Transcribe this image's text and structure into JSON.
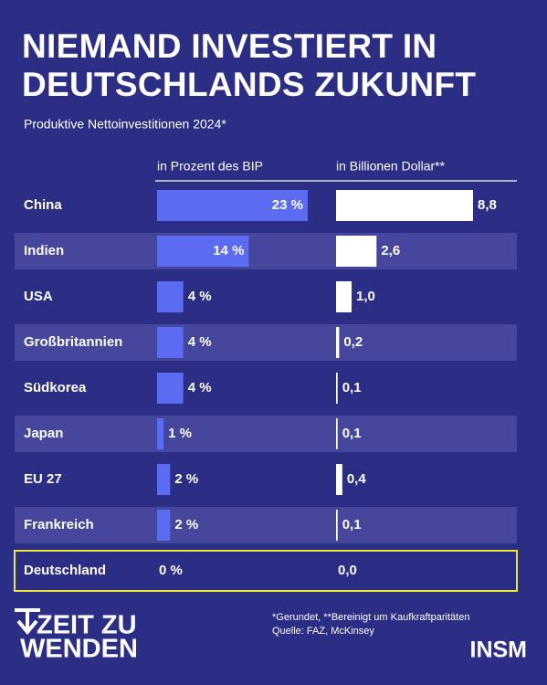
{
  "chart_data": {
    "type": "bar",
    "title": "NIEMAND INVESTIERT IN DEUTSCHLANDS ZUKUNFT",
    "subtitle": "Produktive Nettoinvestitionen 2024*",
    "categories": [
      "China",
      "Indien",
      "USA",
      "Großbritannien",
      "Südkorea",
      "Japan",
      "EU 27",
      "Frankreich",
      "Deutschland"
    ],
    "series": [
      {
        "name": "in Prozent des BIP",
        "color": "#5b6cf2",
        "values": [
          23,
          14,
          4,
          4,
          4,
          1,
          2,
          2,
          0
        ],
        "value_labels": [
          "23 %",
          "14 %",
          "4 %",
          "4 %",
          "4 %",
          "1 %",
          "2 %",
          "2 %",
          "0 %"
        ]
      },
      {
        "name": "in Billionen Dollar**",
        "color": "#ffffff",
        "values": [
          8.8,
          2.6,
          1.0,
          0.2,
          0.1,
          0.1,
          0.4,
          0.1,
          0.0
        ],
        "value_labels": [
          "8,8",
          "2,6",
          "1,0",
          "0,2",
          "0,1",
          "0,1",
          "0,4",
          "0,1",
          "0,0"
        ]
      }
    ],
    "highlight": 8,
    "highlight_color": "#ede63a",
    "footnote": "*Gerundet, **Bereinigt um Kaufkraftparitäten",
    "source": "Quelle: FAZ, McKinsey",
    "logo_left": [
      "ZEIT ZU",
      "WENDEN"
    ],
    "logo_right": "INSM"
  }
}
